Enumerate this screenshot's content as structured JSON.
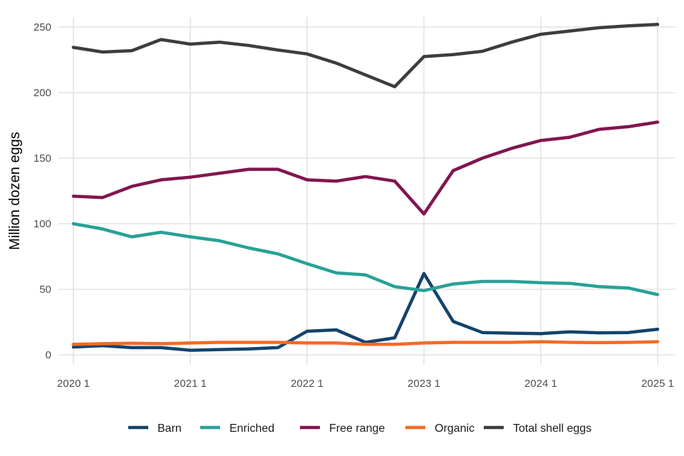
{
  "chart_data": {
    "type": "line",
    "title": "",
    "xlabel": "",
    "ylabel": "Million dozen eggs",
    "ylim": [
      0,
      250
    ],
    "yticks": [
      0,
      50,
      100,
      150,
      200,
      250
    ],
    "x": [
      "2020 1",
      "2020 2",
      "2020 3",
      "2020 4",
      "2021 1",
      "2021 2",
      "2021 3",
      "2021 4",
      "2022 1",
      "2022 2",
      "2022 3",
      "2022 4",
      "2023 1",
      "2023 2",
      "2023 3",
      "2023 4",
      "2024 1",
      "2024 2",
      "2024 3",
      "2024 4",
      "2025 1"
    ],
    "xticks": [
      "2020 1",
      "2021 1",
      "2022 1",
      "2023 1",
      "2024 1",
      "2025 1"
    ],
    "grid": true,
    "legend_position": "bottom",
    "series": [
      {
        "name": "Barn",
        "color": "#12436d",
        "values": [
          6,
          7,
          5.5,
          5.5,
          3.5,
          4,
          4.5,
          5.5,
          18,
          19,
          9.5,
          13,
          62,
          25.5,
          17,
          16.5,
          16.2,
          17.5,
          16.8,
          17,
          19.5
        ]
      },
      {
        "name": "Enriched",
        "color": "#28a197",
        "values": [
          100,
          96,
          90,
          93.5,
          90,
          87,
          81.5,
          77,
          69.5,
          62.5,
          61,
          52,
          49,
          54,
          56,
          56,
          55,
          54.5,
          52,
          51,
          46
        ]
      },
      {
        "name": "Free range",
        "color": "#801650",
        "values": [
          121,
          120,
          128.5,
          133.5,
          135.5,
          138.5,
          141.5,
          141.5,
          133.5,
          132.5,
          136,
          132.5,
          107.5,
          140.5,
          150,
          157.5,
          163.5,
          166,
          172,
          174,
          177.5
        ]
      },
      {
        "name": "Organic",
        "color": "#f46a25",
        "values": [
          8,
          8.5,
          8.8,
          8.5,
          9,
          9.5,
          9.5,
          9.5,
          9,
          9,
          8,
          8,
          9,
          9.5,
          9.5,
          9.5,
          10,
          9.5,
          9.3,
          9.5,
          10
        ]
      },
      {
        "name": "Total shell eggs",
        "color": "#3d3d3d",
        "values": [
          234.5,
          231,
          232,
          240.5,
          237,
          238.5,
          236,
          232.5,
          229.5,
          222.5,
          213.5,
          204.5,
          227.5,
          229,
          231.5,
          238.5,
          244.5,
          247,
          249.5,
          251,
          252
        ]
      }
    ]
  }
}
